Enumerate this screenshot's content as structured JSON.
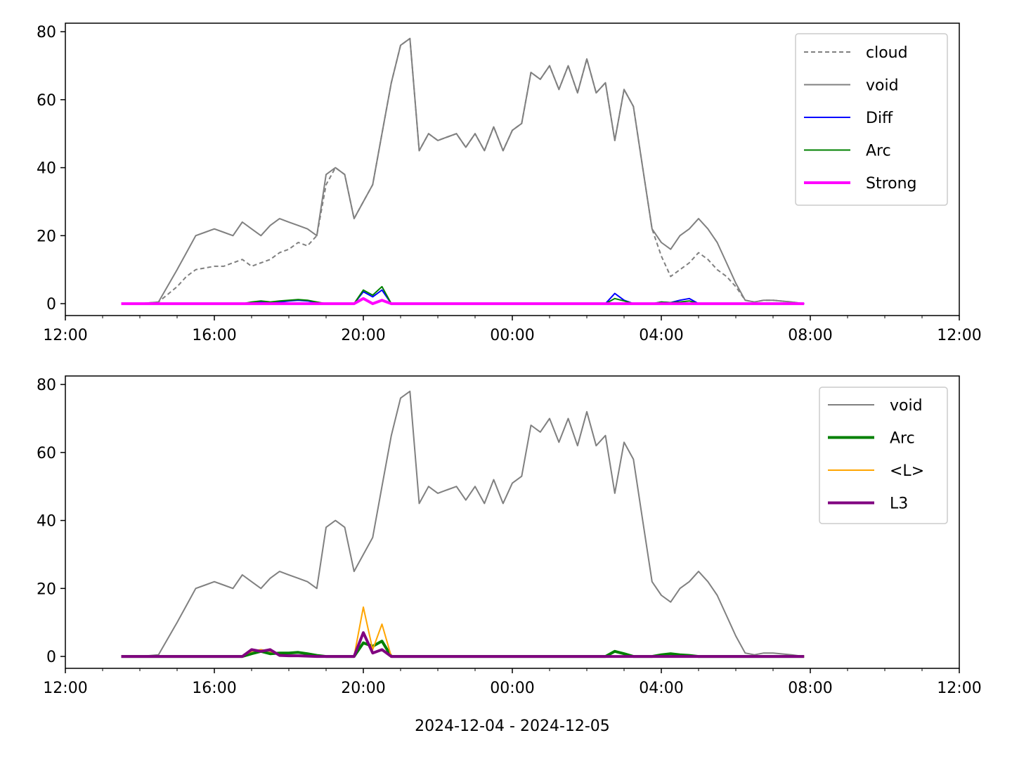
{
  "figure": {
    "xlabel": "2024-12-04 - 2024-12-05"
  },
  "chart_data": [
    {
      "type": "line",
      "xlabel": "",
      "ylabel": "",
      "x_unit": "datetime",
      "xlim": [
        "2024-12-04 12:00",
        "2024-12-05 12:00"
      ],
      "ylim": [
        -3.5,
        82.5
      ],
      "x_ticks": [
        "12:00",
        "16:00",
        "20:00",
        "00:00",
        "04:00",
        "08:00",
        "12:00"
      ],
      "y_ticks": [
        0,
        20,
        40,
        60,
        80
      ],
      "legend_position": "top-right",
      "x": [
        "13:30",
        "14:00",
        "14:30",
        "15:00",
        "15:15",
        "15:30",
        "15:45",
        "16:00",
        "16:15",
        "16:30",
        "16:45",
        "17:00",
        "17:15",
        "17:30",
        "17:45",
        "18:00",
        "18:15",
        "18:30",
        "18:45",
        "19:00",
        "19:15",
        "19:30",
        "19:45",
        "20:00",
        "20:15",
        "20:30",
        "20:45",
        "21:00",
        "21:15",
        "21:30",
        "21:45",
        "22:00",
        "22:15",
        "22:30",
        "22:45",
        "23:00",
        "23:15",
        "23:30",
        "23:45",
        "00:00",
        "00:15",
        "00:30",
        "00:45",
        "01:00",
        "01:15",
        "01:30",
        "01:45",
        "02:00",
        "02:15",
        "02:30",
        "02:45",
        "03:00",
        "03:15",
        "03:30",
        "03:45",
        "04:00",
        "04:15",
        "04:30",
        "04:45",
        "05:00",
        "05:15",
        "05:30",
        "05:45",
        "06:00",
        "06:15",
        "06:30",
        "06:45",
        "07:00",
        "07:30",
        "07:50"
      ],
      "series": [
        {
          "name": "cloud",
          "color": "#808080",
          "style": "dashed",
          "values": [
            0,
            0,
            0.5,
            5,
            8,
            10,
            10.5,
            11,
            11,
            12,
            13,
            11,
            12,
            13,
            15,
            16,
            18,
            17,
            20,
            35,
            40,
            38,
            25,
            30,
            35,
            50,
            65,
            76,
            78,
            45,
            50,
            48,
            49,
            50,
            46,
            50,
            45,
            52,
            45,
            51,
            53,
            68,
            66,
            70,
            63,
            70,
            62,
            72,
            62,
            65,
            48,
            63,
            58,
            40,
            22,
            14,
            8,
            10,
            12,
            15,
            13,
            10,
            8,
            5,
            1,
            0.5,
            1,
            1,
            0.5,
            0
          ]
        },
        {
          "name": "void",
          "color": "#808080",
          "style": "solid",
          "values": [
            0,
            0,
            0.5,
            10,
            15,
            20,
            21,
            22,
            21,
            20,
            24,
            22,
            20,
            23,
            25,
            24,
            23,
            22,
            20,
            38,
            40,
            38,
            25,
            30,
            35,
            50,
            65,
            76,
            78,
            45,
            50,
            48,
            49,
            50,
            46,
            50,
            45,
            52,
            45,
            51,
            53,
            68,
            66,
            70,
            63,
            70,
            62,
            72,
            62,
            65,
            48,
            63,
            58,
            40,
            22,
            18,
            16,
            20,
            22,
            25,
            22,
            18,
            12,
            6,
            1,
            0.5,
            1,
            1,
            0.5,
            0
          ]
        },
        {
          "name": "Diff",
          "color": "#0000ff",
          "style": "solid",
          "values": [
            0,
            0,
            0,
            0,
            0,
            0,
            0,
            0,
            0,
            0,
            0,
            0.3,
            0.5,
            0.3,
            0.5,
            0.8,
            1,
            0.8,
            0.3,
            0,
            0,
            0,
            0,
            3.5,
            2,
            4,
            0,
            0,
            0,
            0,
            0,
            0,
            0,
            0,
            0,
            0,
            0,
            0,
            0,
            0,
            0,
            0,
            0,
            0,
            0,
            0,
            0,
            0,
            0,
            0,
            3,
            1,
            0,
            0,
            0,
            0.5,
            0.3,
            1,
            1.5,
            0,
            0,
            0,
            0,
            0,
            0,
            0,
            0,
            0,
            0,
            0
          ]
        },
        {
          "name": "Arc",
          "color": "#008000",
          "style": "solid",
          "values": [
            0,
            0,
            0,
            0,
            0,
            0,
            0,
            0,
            0,
            0,
            0,
            0.5,
            0.8,
            0.5,
            0.8,
            1,
            1.2,
            1,
            0.5,
            0,
            0,
            0,
            0,
            4,
            2.5,
            5,
            0,
            0,
            0,
            0,
            0,
            0,
            0,
            0,
            0,
            0,
            0,
            0,
            0,
            0,
            0,
            0,
            0,
            0,
            0,
            0,
            0,
            0,
            0,
            0,
            1.5,
            0.8,
            0,
            0,
            0,
            0.5,
            0.3,
            0.5,
            0.8,
            0,
            0,
            0,
            0,
            0,
            0,
            0,
            0,
            0,
            0,
            0
          ]
        },
        {
          "name": "Strong",
          "color": "#ff00ff",
          "style": "solid",
          "values": [
            0,
            0,
            0,
            0,
            0,
            0,
            0,
            0,
            0,
            0,
            0,
            0,
            0,
            0,
            0,
            0,
            0,
            0,
            0,
            0,
            0,
            0,
            0,
            1.5,
            0,
            1,
            0,
            0,
            0,
            0,
            0,
            0,
            0,
            0,
            0,
            0,
            0,
            0,
            0,
            0,
            0,
            0,
            0,
            0,
            0,
            0,
            0,
            0,
            0,
            0,
            0,
            0,
            0,
            0,
            0,
            0,
            0,
            0,
            0,
            0,
            0,
            0,
            0,
            0,
            0,
            0,
            0,
            0,
            0,
            0
          ]
        }
      ]
    },
    {
      "type": "line",
      "xlabel": "2024-12-04 - 2024-12-05",
      "ylabel": "",
      "x_unit": "datetime",
      "xlim": [
        "2024-12-04 12:00",
        "2024-12-05 12:00"
      ],
      "ylim": [
        -3.5,
        82.5
      ],
      "x_ticks": [
        "12:00",
        "16:00",
        "20:00",
        "00:00",
        "04:00",
        "08:00",
        "12:00"
      ],
      "y_ticks": [
        0,
        20,
        40,
        60,
        80
      ],
      "legend_position": "top-right",
      "x": [
        "13:30",
        "14:00",
        "14:30",
        "15:00",
        "15:15",
        "15:30",
        "15:45",
        "16:00",
        "16:15",
        "16:30",
        "16:45",
        "17:00",
        "17:15",
        "17:30",
        "17:45",
        "18:00",
        "18:15",
        "18:30",
        "18:45",
        "19:00",
        "19:15",
        "19:30",
        "19:45",
        "20:00",
        "20:15",
        "20:30",
        "20:45",
        "21:00",
        "21:15",
        "21:30",
        "21:45",
        "22:00",
        "22:15",
        "22:30",
        "22:45",
        "23:00",
        "23:15",
        "23:30",
        "23:45",
        "00:00",
        "00:15",
        "00:30",
        "00:45",
        "01:00",
        "01:15",
        "01:30",
        "01:45",
        "02:00",
        "02:15",
        "02:30",
        "02:45",
        "03:00",
        "03:15",
        "03:30",
        "03:45",
        "04:00",
        "04:15",
        "04:30",
        "04:45",
        "05:00",
        "05:15",
        "05:30",
        "05:45",
        "06:00",
        "06:15",
        "06:30",
        "06:45",
        "07:00",
        "07:30",
        "07:50"
      ],
      "series": [
        {
          "name": "void",
          "color": "#808080",
          "style": "solid",
          "values": [
            0,
            0,
            0.5,
            10,
            15,
            20,
            21,
            22,
            21,
            20,
            24,
            22,
            20,
            23,
            25,
            24,
            23,
            22,
            20,
            38,
            40,
            38,
            25,
            30,
            35,
            50,
            65,
            76,
            78,
            45,
            50,
            48,
            49,
            50,
            46,
            50,
            45,
            52,
            45,
            51,
            53,
            68,
            66,
            70,
            63,
            70,
            62,
            72,
            62,
            65,
            48,
            63,
            58,
            40,
            22,
            18,
            16,
            20,
            22,
            25,
            22,
            18,
            12,
            6,
            1,
            0.5,
            1,
            1,
            0.5,
            0
          ]
        },
        {
          "name": "Arc",
          "color": "#008000",
          "style": "solid",
          "values": [
            0,
            0,
            0,
            0,
            0,
            0,
            0,
            0,
            0,
            0,
            0,
            0.8,
            1.5,
            0.8,
            1,
            1,
            1.2,
            0.8,
            0.3,
            0,
            0,
            0,
            0,
            4,
            3,
            4.5,
            0,
            0,
            0,
            0,
            0,
            0,
            0,
            0,
            0,
            0,
            0,
            0,
            0,
            0,
            0,
            0,
            0,
            0,
            0,
            0,
            0,
            0,
            0,
            0,
            1.5,
            0.8,
            0,
            0,
            0,
            0.5,
            0.8,
            0.5,
            0.3,
            0,
            0,
            0,
            0,
            0,
            0,
            0,
            0,
            0,
            0,
            0
          ]
        },
        {
          "name": "<L>",
          "color": "#ffa500",
          "style": "solid",
          "values": [
            0,
            0,
            0,
            0,
            0,
            0,
            0,
            0,
            0,
            0,
            0,
            1.5,
            2,
            1.5,
            0.5,
            0.3,
            0.3,
            0.2,
            0,
            0,
            0,
            0,
            0,
            14.5,
            2,
            9.5,
            0,
            0,
            0,
            0,
            0,
            0,
            0,
            0,
            0,
            0,
            0,
            0,
            0,
            0,
            0,
            0,
            0,
            0,
            0,
            0,
            0,
            0,
            0,
            0,
            0,
            0,
            0,
            0,
            0,
            0,
            0,
            0,
            0,
            0,
            0,
            0,
            0,
            0,
            0,
            0,
            0,
            0,
            0,
            0
          ]
        },
        {
          "name": "L3",
          "color": "#800080",
          "style": "solid",
          "values": [
            0,
            0,
            0,
            0,
            0,
            0,
            0,
            0,
            0,
            0,
            0,
            2,
            1.5,
            2,
            0.3,
            0.2,
            0.2,
            0.1,
            0,
            0,
            0,
            0,
            0,
            7,
            1,
            2,
            0,
            0,
            0,
            0,
            0,
            0,
            0,
            0,
            0,
            0,
            0,
            0,
            0,
            0,
            0,
            0,
            0,
            0,
            0,
            0,
            0,
            0,
            0,
            0,
            0,
            0,
            0,
            0,
            0,
            0,
            0,
            0,
            0,
            0,
            0,
            0,
            0,
            0,
            0,
            0,
            0,
            0,
            0,
            0
          ]
        }
      ]
    }
  ]
}
